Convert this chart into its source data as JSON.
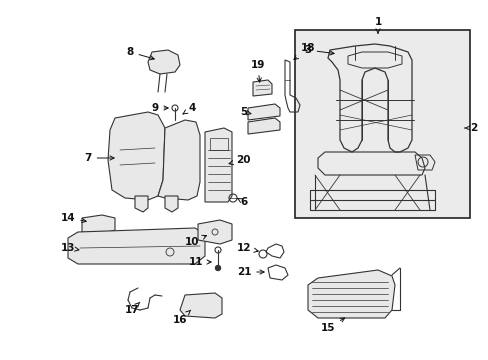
{
  "bg_color": "#ffffff",
  "fig_width": 4.89,
  "fig_height": 3.6,
  "dpi": 100,
  "line_color": "#333333",
  "fill_light": "#e8e8e8",
  "fill_med": "#d0d0d0",
  "box_fill": "#e0e0e0"
}
